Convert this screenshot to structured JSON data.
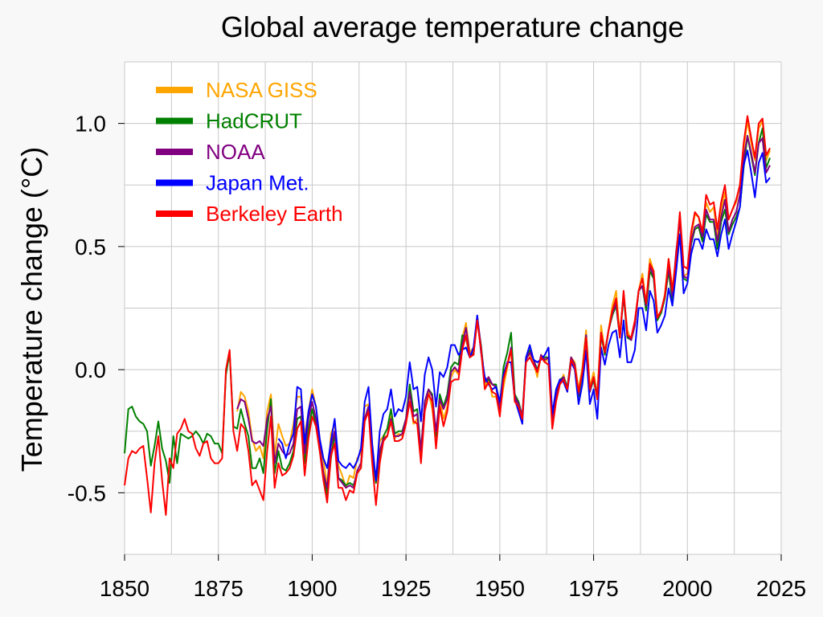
{
  "chart_data": {
    "type": "line",
    "title": "Global average temperature change",
    "xlabel": "",
    "ylabel": "Temperature change (°C)",
    "xlim": [
      1850,
      2025
    ],
    "ylim": [
      -0.75,
      1.25
    ],
    "x_ticks": [
      "1850",
      "1875",
      "1900",
      "1925",
      "1950",
      "1975",
      "2000",
      "2025"
    ],
    "y_ticks": [
      "-0.5",
      "0.0",
      "0.5",
      "1.0"
    ],
    "grid": true,
    "legend_position": "top-left",
    "series": [
      {
        "name": "NASA GISS",
        "color": "#ffa500",
        "start_year": 1880,
        "values": [
          -0.17,
          -0.09,
          -0.11,
          -0.17,
          -0.28,
          -0.33,
          -0.31,
          -0.36,
          -0.17,
          -0.1,
          -0.35,
          -0.22,
          -0.27,
          -0.31,
          -0.3,
          -0.22,
          -0.11,
          -0.11,
          -0.27,
          -0.17,
          -0.08,
          -0.15,
          -0.28,
          -0.37,
          -0.47,
          -0.26,
          -0.22,
          -0.39,
          -0.43,
          -0.48,
          -0.43,
          -0.44,
          -0.36,
          -0.34,
          -0.15,
          -0.14,
          -0.36,
          -0.46,
          -0.29,
          -0.27,
          -0.27,
          -0.19,
          -0.28,
          -0.26,
          -0.27,
          -0.22,
          -0.1,
          -0.22,
          -0.2,
          -0.36,
          -0.16,
          -0.09,
          -0.16,
          -0.29,
          -0.12,
          -0.2,
          -0.15,
          -0.03,
          0.0,
          -0.02,
          0.13,
          0.19,
          0.07,
          0.09,
          0.2,
          0.09,
          -0.07,
          -0.03,
          -0.11,
          -0.11,
          -0.17,
          -0.07,
          0.01,
          0.08,
          -0.13,
          -0.14,
          -0.19,
          0.05,
          0.06,
          0.03,
          -0.03,
          0.06,
          0.03,
          0.05,
          -0.2,
          -0.11,
          -0.06,
          -0.02,
          -0.08,
          0.05,
          0.03,
          -0.08,
          0.01,
          0.16,
          -0.07,
          -0.01,
          -0.1,
          0.18,
          0.07,
          0.16,
          0.26,
          0.32,
          0.14,
          0.31,
          0.16,
          0.12,
          0.18,
          0.32,
          0.39,
          0.27,
          0.45,
          0.4,
          0.22,
          0.23,
          0.31,
          0.45,
          0.33,
          0.46,
          0.61,
          0.38,
          0.39,
          0.54,
          0.63,
          0.62,
          0.53,
          0.68,
          0.64,
          0.66,
          0.54,
          0.65,
          0.72,
          0.61,
          0.65,
          0.68,
          0.75,
          0.9,
          1.01,
          0.92,
          0.85,
          0.98,
          1.01,
          0.85,
          0.89
        ]
      },
      {
        "name": "HadCRUT",
        "color": "#008000",
        "start_year": 1850,
        "values": [
          -0.34,
          -0.16,
          -0.15,
          -0.19,
          -0.21,
          -0.22,
          -0.25,
          -0.39,
          -0.31,
          -0.21,
          -0.32,
          -0.37,
          -0.46,
          -0.27,
          -0.38,
          -0.26,
          -0.27,
          -0.28,
          -0.27,
          -0.25,
          -0.27,
          -0.3,
          -0.26,
          -0.27,
          -0.3,
          -0.3,
          -0.34,
          -0.02,
          0.07,
          -0.23,
          -0.24,
          -0.16,
          -0.22,
          -0.27,
          -0.4,
          -0.4,
          -0.36,
          -0.42,
          -0.24,
          -0.12,
          -0.42,
          -0.33,
          -0.4,
          -0.41,
          -0.38,
          -0.33,
          -0.2,
          -0.19,
          -0.38,
          -0.25,
          -0.16,
          -0.22,
          -0.33,
          -0.42,
          -0.51,
          -0.36,
          -0.26,
          -0.44,
          -0.45,
          -0.47,
          -0.46,
          -0.47,
          -0.42,
          -0.4,
          -0.2,
          -0.15,
          -0.34,
          -0.46,
          -0.35,
          -0.27,
          -0.24,
          -0.16,
          -0.26,
          -0.25,
          -0.25,
          -0.2,
          -0.06,
          -0.17,
          -0.16,
          -0.33,
          -0.13,
          -0.08,
          -0.1,
          -0.27,
          -0.1,
          -0.15,
          -0.1,
          0.01,
          0.03,
          0.02,
          0.14,
          0.13,
          0.05,
          0.07,
          0.2,
          0.1,
          -0.05,
          -0.04,
          -0.06,
          -0.06,
          -0.15,
          0.01,
          0.07,
          0.15,
          -0.1,
          -0.13,
          -0.19,
          0.05,
          0.08,
          0.04,
          0.0,
          0.05,
          0.05,
          0.05,
          -0.19,
          -0.1,
          -0.04,
          -0.03,
          -0.07,
          0.05,
          0.01,
          -0.11,
          -0.02,
          0.14,
          -0.09,
          -0.04,
          -0.12,
          0.14,
          0.06,
          0.16,
          0.22,
          0.26,
          0.13,
          0.3,
          0.13,
          0.12,
          0.18,
          0.32,
          0.34,
          0.24,
          0.4,
          0.37,
          0.2,
          0.23,
          0.29,
          0.4,
          0.28,
          0.45,
          0.62,
          0.37,
          0.36,
          0.51,
          0.57,
          0.58,
          0.52,
          0.63,
          0.6,
          0.6,
          0.49,
          0.6,
          0.65,
          0.55,
          0.59,
          0.62,
          0.66,
          0.82,
          0.95,
          0.87,
          0.79,
          0.92,
          0.98,
          0.82,
          0.86
        ]
      },
      {
        "name": "NOAA",
        "color": "#800080",
        "start_year": 1880,
        "values": [
          -0.16,
          -0.12,
          -0.13,
          -0.2,
          -0.29,
          -0.3,
          -0.29,
          -0.31,
          -0.2,
          -0.15,
          -0.38,
          -0.3,
          -0.33,
          -0.35,
          -0.34,
          -0.3,
          -0.16,
          -0.15,
          -0.34,
          -0.2,
          -0.13,
          -0.2,
          -0.31,
          -0.42,
          -0.48,
          -0.31,
          -0.25,
          -0.44,
          -0.46,
          -0.48,
          -0.47,
          -0.48,
          -0.41,
          -0.38,
          -0.2,
          -0.15,
          -0.33,
          -0.45,
          -0.33,
          -0.28,
          -0.27,
          -0.2,
          -0.27,
          -0.27,
          -0.26,
          -0.2,
          -0.09,
          -0.19,
          -0.18,
          -0.33,
          -0.13,
          -0.08,
          -0.11,
          -0.25,
          -0.12,
          -0.16,
          -0.12,
          -0.01,
          0.01,
          -0.01,
          0.1,
          0.17,
          0.06,
          0.06,
          0.22,
          0.09,
          -0.05,
          -0.03,
          -0.06,
          -0.07,
          -0.16,
          -0.04,
          0.02,
          0.09,
          -0.11,
          -0.14,
          -0.19,
          0.04,
          0.07,
          0.04,
          -0.01,
          0.06,
          0.04,
          0.05,
          -0.21,
          -0.11,
          -0.05,
          -0.03,
          -0.08,
          0.05,
          0.02,
          -0.1,
          -0.01,
          0.14,
          -0.09,
          -0.03,
          -0.11,
          0.15,
          0.07,
          0.16,
          0.23,
          0.27,
          0.13,
          0.31,
          0.14,
          0.12,
          0.18,
          0.32,
          0.34,
          0.26,
          0.42,
          0.38,
          0.21,
          0.24,
          0.3,
          0.42,
          0.3,
          0.48,
          0.61,
          0.38,
          0.37,
          0.52,
          0.58,
          0.59,
          0.54,
          0.65,
          0.61,
          0.61,
          0.52,
          0.62,
          0.69,
          0.56,
          0.61,
          0.64,
          0.71,
          0.86,
          0.95,
          0.88,
          0.8,
          0.92,
          0.94,
          0.8,
          0.83
        ]
      },
      {
        "name": "Japan Met.",
        "color": "#0000ff",
        "start_year": 1891,
        "values": [
          -0.28,
          -0.3,
          -0.36,
          -0.3,
          -0.26,
          -0.07,
          -0.08,
          -0.3,
          -0.17,
          -0.1,
          -0.15,
          -0.28,
          -0.36,
          -0.4,
          -0.29,
          -0.2,
          -0.37,
          -0.39,
          -0.4,
          -0.38,
          -0.4,
          -0.37,
          -0.32,
          -0.13,
          -0.07,
          -0.3,
          -0.45,
          -0.25,
          -0.18,
          -0.16,
          -0.08,
          -0.19,
          -0.16,
          -0.17,
          -0.11,
          0.03,
          -0.08,
          -0.07,
          -0.21,
          -0.02,
          0.05,
          0.0,
          -0.15,
          -0.01,
          -0.03,
          0.01,
          0.1,
          0.1,
          0.06,
          0.08,
          0.09,
          0.05,
          0.09,
          0.22,
          0.07,
          -0.03,
          -0.06,
          -0.08,
          -0.07,
          -0.13,
          -0.02,
          0.03,
          0.03,
          -0.12,
          -0.17,
          -0.22,
          0.05,
          0.1,
          0.04,
          0.03,
          0.04,
          0.06,
          0.09,
          -0.18,
          -0.08,
          -0.04,
          -0.05,
          -0.09,
          0.03,
          0.0,
          -0.14,
          -0.06,
          0.08,
          -0.14,
          -0.08,
          -0.2,
          0.09,
          0.02,
          0.1,
          0.15,
          0.16,
          0.05,
          0.2,
          0.03,
          0.03,
          0.08,
          0.25,
          0.25,
          0.16,
          0.32,
          0.28,
          0.15,
          0.18,
          0.22,
          0.33,
          0.26,
          0.4,
          0.55,
          0.31,
          0.35,
          0.47,
          0.53,
          0.53,
          0.49,
          0.57,
          0.53,
          0.53,
          0.46,
          0.55,
          0.61,
          0.49,
          0.55,
          0.6,
          0.66,
          0.83,
          0.89,
          0.8,
          0.7,
          0.84,
          0.88,
          0.76,
          0.78
        ]
      },
      {
        "name": "Berkeley Earth",
        "color": "#ff0000",
        "start_year": 1850,
        "values": [
          -0.47,
          -0.36,
          -0.33,
          -0.34,
          -0.32,
          -0.31,
          -0.44,
          -0.58,
          -0.38,
          -0.27,
          -0.45,
          -0.59,
          -0.36,
          -0.4,
          -0.26,
          -0.24,
          -0.2,
          -0.25,
          -0.26,
          -0.32,
          -0.35,
          -0.3,
          -0.29,
          -0.36,
          -0.38,
          -0.38,
          -0.36,
          0.0,
          0.08,
          -0.25,
          -0.33,
          -0.22,
          -0.24,
          -0.33,
          -0.47,
          -0.45,
          -0.49,
          -0.53,
          -0.33,
          -0.19,
          -0.48,
          -0.38,
          -0.43,
          -0.42,
          -0.4,
          -0.35,
          -0.24,
          -0.21,
          -0.43,
          -0.28,
          -0.19,
          -0.23,
          -0.33,
          -0.45,
          -0.54,
          -0.35,
          -0.3,
          -0.48,
          -0.48,
          -0.53,
          -0.49,
          -0.5,
          -0.42,
          -0.4,
          -0.21,
          -0.17,
          -0.38,
          -0.55,
          -0.38,
          -0.29,
          -0.27,
          -0.21,
          -0.29,
          -0.29,
          -0.28,
          -0.22,
          -0.13,
          -0.21,
          -0.22,
          -0.38,
          -0.17,
          -0.1,
          -0.13,
          -0.32,
          -0.15,
          -0.23,
          -0.17,
          -0.05,
          -0.04,
          -0.04,
          0.08,
          0.14,
          0.05,
          0.06,
          0.2,
          0.08,
          -0.08,
          -0.05,
          -0.09,
          -0.1,
          -0.19,
          -0.04,
          0.02,
          0.08,
          -0.13,
          -0.15,
          -0.2,
          0.03,
          0.05,
          0.02,
          -0.01,
          0.05,
          0.03,
          0.02,
          -0.24,
          -0.13,
          -0.06,
          -0.04,
          -0.08,
          0.04,
          0.01,
          -0.09,
          -0.01,
          0.13,
          -0.08,
          -0.03,
          -0.12,
          0.15,
          0.07,
          0.16,
          0.24,
          0.29,
          0.13,
          0.32,
          0.14,
          0.13,
          0.2,
          0.32,
          0.37,
          0.27,
          0.43,
          0.4,
          0.21,
          0.24,
          0.3,
          0.45,
          0.32,
          0.46,
          0.64,
          0.42,
          0.41,
          0.56,
          0.64,
          0.62,
          0.56,
          0.71,
          0.67,
          0.68,
          0.57,
          0.68,
          0.75,
          0.61,
          0.65,
          0.69,
          0.75,
          0.92,
          1.03,
          0.94,
          0.86,
          1.0,
          1.02,
          0.87,
          0.9
        ]
      }
    ]
  }
}
